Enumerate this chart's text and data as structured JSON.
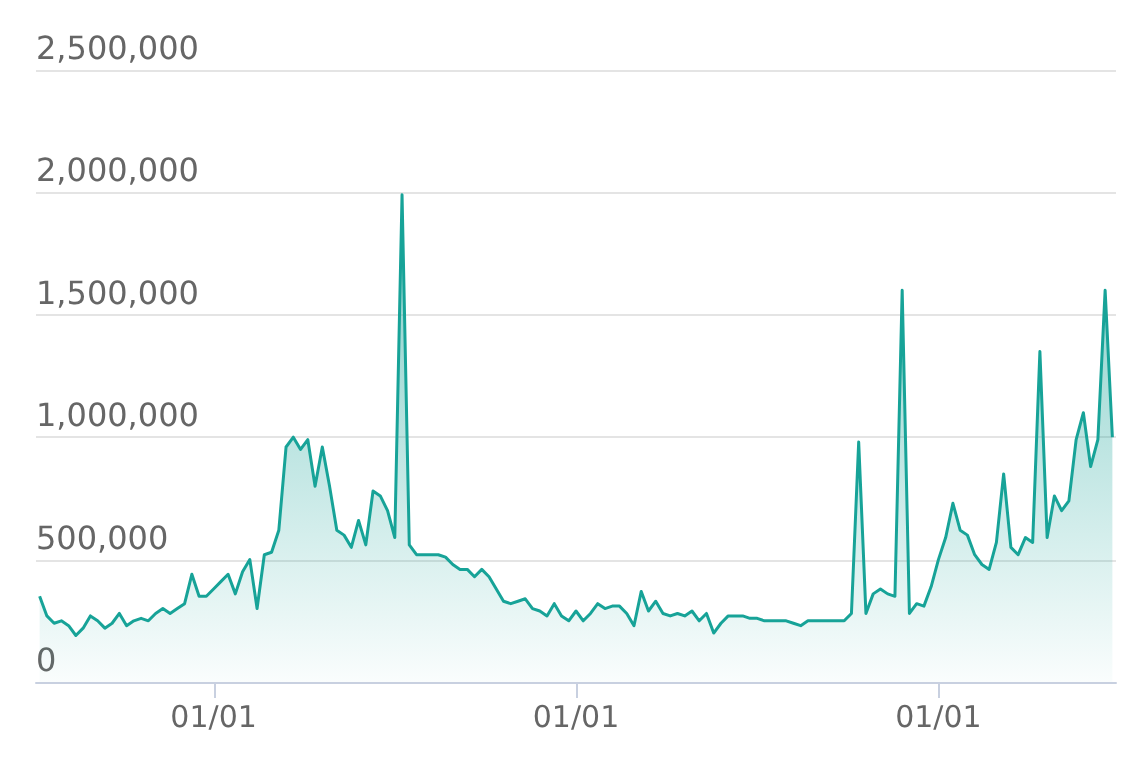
{
  "chart_data": {
    "type": "area",
    "color": "#17a398",
    "grid": "y",
    "marker": "none",
    "ylim": [
      0,
      2500000
    ],
    "yticks": [
      {
        "value": 0,
        "label": "0"
      },
      {
        "value": 500000,
        "label": "500,000"
      },
      {
        "value": 1000000,
        "label": "1,000,000"
      },
      {
        "value": 1500000,
        "label": "1,500,000"
      },
      {
        "value": 2000000,
        "label": "2,000,000"
      },
      {
        "value": 2500000,
        "label": "2,500,000"
      }
    ],
    "categories": [
      null,
      null,
      null,
      null,
      null,
      null,
      null,
      null,
      null,
      null,
      null,
      null,
      null,
      null,
      null,
      null,
      null,
      null,
      null,
      null,
      null,
      null,
      null,
      null,
      "01/01",
      null,
      null,
      null,
      null,
      null,
      null,
      null,
      null,
      null,
      null,
      null,
      null,
      null,
      null,
      null,
      null,
      null,
      null,
      null,
      null,
      null,
      null,
      null,
      null,
      null,
      null,
      null,
      null,
      null,
      null,
      null,
      null,
      null,
      null,
      null,
      null,
      null,
      null,
      null,
      null,
      null,
      null,
      null,
      null,
      null,
      null,
      null,
      null,
      null,
      "01/01",
      null,
      null,
      null,
      null,
      null,
      null,
      null,
      null,
      null,
      null,
      null,
      null,
      null,
      null,
      null,
      null,
      null,
      null,
      null,
      null,
      null,
      null,
      null,
      null,
      null,
      null,
      null,
      null,
      null,
      null,
      null,
      null,
      null,
      null,
      null,
      null,
      null,
      null,
      null,
      null,
      null,
      null,
      null,
      null,
      null,
      null,
      null,
      null,
      null,
      "01/01",
      null,
      null,
      null,
      null,
      null,
      null,
      null,
      null,
      null,
      null,
      null,
      null,
      null,
      null,
      null,
      null,
      null,
      null,
      null,
      null,
      null,
      null,
      null,
      null
    ],
    "values": [
      350000,
      270000,
      240000,
      250000,
      230000,
      190000,
      220000,
      270000,
      250000,
      220000,
      240000,
      280000,
      230000,
      250000,
      260000,
      250000,
      280000,
      300000,
      280000,
      300000,
      320000,
      440000,
      350000,
      350000,
      380000,
      410000,
      440000,
      360000,
      450000,
      500000,
      300000,
      520000,
      530000,
      620000,
      960000,
      1000000,
      950000,
      990000,
      800000,
      960000,
      800000,
      620000,
      600000,
      550000,
      660000,
      560000,
      780000,
      760000,
      700000,
      590000,
      1990000,
      560000,
      520000,
      520000,
      520000,
      520000,
      510000,
      480000,
      460000,
      460000,
      430000,
      460000,
      430000,
      380000,
      330000,
      320000,
      330000,
      340000,
      300000,
      290000,
      270000,
      320000,
      270000,
      250000,
      290000,
      250000,
      280000,
      320000,
      300000,
      310000,
      310000,
      280000,
      230000,
      370000,
      290000,
      330000,
      280000,
      270000,
      280000,
      270000,
      290000,
      250000,
      280000,
      200000,
      240000,
      270000,
      270000,
      270000,
      260000,
      260000,
      250000,
      250000,
      250000,
      250000,
      240000,
      230000,
      250000,
      250000,
      250000,
      250000,
      250000,
      250000,
      280000,
      980000,
      280000,
      360000,
      380000,
      360000,
      350000,
      1600000,
      280000,
      320000,
      310000,
      390000,
      500000,
      590000,
      730000,
      620000,
      600000,
      520000,
      480000,
      460000,
      570000,
      850000,
      550000,
      520000,
      590000,
      570000,
      1350000,
      590000,
      760000,
      700000,
      740000,
      990000,
      1100000,
      880000,
      990000,
      1600000,
      1000000
    ]
  }
}
